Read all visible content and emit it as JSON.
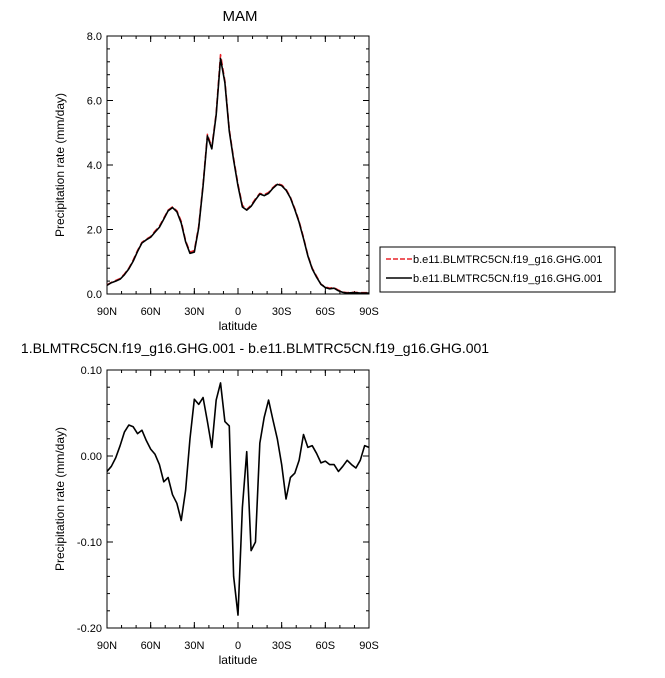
{
  "chart_data": [
    {
      "type": "line",
      "title": "MAM",
      "xlabel": "latitude",
      "ylabel": "Precipitation rate (mm/day)",
      "xlim": [
        90,
        -90
      ],
      "ylim": [
        0,
        8
      ],
      "xticks": [
        90,
        60,
        30,
        0,
        -30,
        -60,
        -90
      ],
      "xtick_labels": [
        "90N",
        "60N",
        "30N",
        "0",
        "30S",
        "60S",
        "90S"
      ],
      "yticks": [
        0,
        2,
        4,
        6,
        8
      ],
      "ytick_labels": [
        "0.0",
        "2.0",
        "4.0",
        "6.0",
        "8.0"
      ],
      "legend_position": "right",
      "series": [
        {
          "name": "b.e11.BLMTRC5CN.f19_g16.GHG.001",
          "color": "#e8232a",
          "dash": "dashed",
          "x": [
            90,
            87,
            84,
            81,
            78,
            75,
            72,
            69,
            66,
            63,
            60,
            57,
            54,
            51,
            48,
            45,
            42,
            39,
            36,
            33,
            30,
            27,
            24,
            21,
            18,
            15,
            12,
            9,
            6,
            3,
            0,
            -3,
            -6,
            -9,
            -12,
            -15,
            -18,
            -21,
            -24,
            -27,
            -30,
            -33,
            -36,
            -39,
            -42,
            -45,
            -48,
            -51,
            -54,
            -57,
            -60,
            -63,
            -66,
            -69,
            -72,
            -75,
            -78,
            -81,
            -84,
            -87,
            -90
          ],
          "y": [
            0.28,
            0.36,
            0.42,
            0.48,
            0.62,
            0.8,
            1.05,
            1.35,
            1.6,
            1.7,
            1.78,
            1.95,
            2.1,
            2.35,
            2.6,
            2.7,
            2.58,
            2.25,
            1.65,
            1.3,
            1.35,
            2.1,
            3.4,
            4.95,
            4.55,
            5.6,
            7.42,
            6.6,
            5.1,
            4.2,
            3.4,
            2.75,
            2.62,
            2.75,
            2.95,
            3.12,
            3.08,
            3.15,
            3.3,
            3.42,
            3.38,
            3.25,
            3.0,
            2.65,
            2.25,
            1.75,
            1.2,
            0.8,
            0.55,
            0.3,
            0.22,
            0.18,
            0.2,
            0.12,
            0.06,
            0.04,
            0.05,
            0.05,
            0.04,
            0.04,
            0.04
          ]
        },
        {
          "name": "b.e11.BLMTRC5CN.f19_g16.GHG.001",
          "color": "#000000",
          "dash": "solid",
          "x": [
            90,
            87,
            84,
            81,
            78,
            75,
            72,
            69,
            66,
            63,
            60,
            57,
            54,
            51,
            48,
            45,
            42,
            39,
            36,
            33,
            30,
            27,
            24,
            21,
            18,
            15,
            12,
            9,
            6,
            3,
            0,
            -3,
            -6,
            -9,
            -12,
            -15,
            -18,
            -21,
            -24,
            -27,
            -30,
            -33,
            -36,
            -39,
            -42,
            -45,
            -48,
            -51,
            -54,
            -57,
            -60,
            -63,
            -66,
            -69,
            -72,
            -75,
            -78,
            -81,
            -84,
            -87,
            -90
          ],
          "y": [
            0.27,
            0.35,
            0.4,
            0.46,
            0.6,
            0.78,
            1.02,
            1.32,
            1.58,
            1.68,
            1.76,
            1.92,
            2.07,
            2.32,
            2.58,
            2.68,
            2.55,
            2.2,
            1.62,
            1.26,
            1.3,
            2.05,
            3.35,
            4.9,
            4.5,
            5.55,
            7.3,
            6.55,
            5.05,
            4.15,
            3.35,
            2.7,
            2.6,
            2.72,
            2.92,
            3.1,
            3.05,
            3.12,
            3.28,
            3.4,
            3.36,
            3.22,
            2.98,
            2.62,
            2.22,
            1.72,
            1.18,
            0.78,
            0.52,
            0.3,
            0.2,
            0.16,
            0.18,
            0.1,
            0.05,
            0.03,
            0.04,
            0.04,
            0.03,
            0.03,
            0.03
          ]
        }
      ]
    },
    {
      "type": "line",
      "title": "1.BLMTRC5CN.f19_g16.GHG.001 - b.e11.BLMTRC5CN.f19_g16.GHG.001",
      "xlabel": "latitude",
      "ylabel": "Precipitation rate (mm/day)",
      "xlim": [
        90,
        -90
      ],
      "ylim": [
        -0.2,
        0.1
      ],
      "xticks": [
        90,
        60,
        30,
        0,
        -30,
        -60,
        -90
      ],
      "xtick_labels": [
        "90N",
        "60N",
        "30N",
        "0",
        "30S",
        "60S",
        "90S"
      ],
      "yticks": [
        -0.2,
        -0.1,
        0.0,
        0.1
      ],
      "ytick_labels": [
        "-0.20",
        "-0.10",
        "0.00",
        "0.10"
      ],
      "series": [
        {
          "color": "#000000",
          "dash": "solid",
          "x": [
            90,
            87,
            84,
            81,
            78,
            75,
            72,
            69,
            66,
            63,
            60,
            57,
            54,
            51,
            48,
            45,
            42,
            39,
            36,
            33,
            30,
            27,
            24,
            21,
            18,
            15,
            12,
            9,
            6,
            3,
            0,
            -3,
            -6,
            -9,
            -12,
            -15,
            -18,
            -21,
            -24,
            -27,
            -30,
            -33,
            -36,
            -39,
            -42,
            -45,
            -48,
            -51,
            -54,
            -57,
            -60,
            -63,
            -66,
            -69,
            -72,
            -75,
            -78,
            -81,
            -84,
            -87,
            -90
          ],
          "y": [
            -0.018,
            -0.012,
            -0.002,
            0.012,
            0.028,
            0.036,
            0.034,
            0.026,
            0.03,
            0.018,
            0.008,
            0.002,
            -0.01,
            -0.03,
            -0.025,
            -0.045,
            -0.055,
            -0.075,
            -0.04,
            0.02,
            0.066,
            0.06,
            0.068,
            0.04,
            0.01,
            0.065,
            0.085,
            0.04,
            0.035,
            -0.14,
            -0.185,
            -0.06,
            0.005,
            -0.11,
            -0.1,
            0.015,
            0.045,
            0.065,
            0.042,
            0.02,
            -0.01,
            -0.05,
            -0.025,
            -0.02,
            -0.005,
            0.025,
            0.01,
            0.012,
            0.003,
            -0.008,
            -0.006,
            -0.01,
            -0.01,
            -0.018,
            -0.012,
            -0.005,
            -0.01,
            -0.014,
            -0.005,
            0.012,
            0.01
          ]
        }
      ]
    }
  ]
}
